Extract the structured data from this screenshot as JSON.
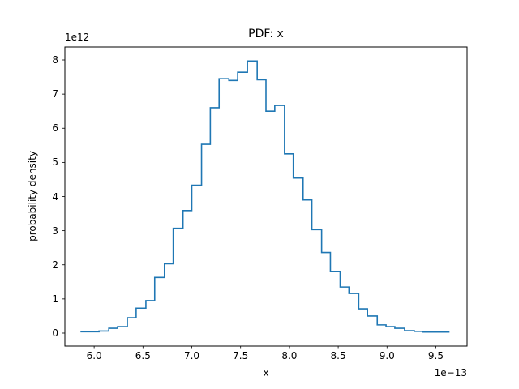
{
  "chart_data": {
    "type": "line",
    "subtype": "step-histogram",
    "title": "PDF: x",
    "xlabel": "x",
    "ylabel": "probability density",
    "x_offset_label": "1e−13",
    "y_offset_label": "1e12",
    "xlim": [
      5.7,
      9.82
    ],
    "ylim": [
      -0.38,
      8.38
    ],
    "x_ticks": [
      "6.0",
      "6.5",
      "7.0",
      "7.5",
      "8.0",
      "8.5",
      "9.0",
      "9.5"
    ],
    "x_tick_values": [
      6.0,
      6.5,
      7.0,
      7.5,
      8.0,
      8.5,
      9.0,
      9.5
    ],
    "y_ticks": [
      "0",
      "1",
      "2",
      "3",
      "4",
      "5",
      "6",
      "7",
      "8"
    ],
    "y_tick_values": [
      0,
      1,
      2,
      3,
      4,
      5,
      6,
      7,
      8
    ],
    "grid": false,
    "legend": null,
    "line_color": "#1f77b4",
    "bin_edges": [
      5.86,
      6.05,
      6.15,
      6.24,
      6.34,
      6.43,
      6.53,
      6.62,
      6.72,
      6.81,
      6.91,
      7.0,
      7.1,
      7.19,
      7.28,
      7.38,
      7.47,
      7.57,
      7.67,
      7.76,
      7.85,
      7.95,
      8.04,
      8.14,
      8.23,
      8.33,
      8.42,
      8.52,
      8.61,
      8.71,
      8.8,
      8.9,
      8.99,
      9.08,
      9.18,
      9.28,
      9.37,
      9.64
    ],
    "values": [
      0.04,
      0.06,
      0.14,
      0.19,
      0.45,
      0.73,
      0.95,
      1.63,
      2.03,
      3.07,
      3.59,
      4.33,
      5.53,
      6.6,
      7.45,
      7.4,
      7.64,
      7.97,
      7.42,
      6.5,
      6.67,
      5.25,
      4.54,
      3.9,
      3.03,
      2.36,
      1.8,
      1.35,
      1.16,
      0.71,
      0.5,
      0.24,
      0.19,
      0.14,
      0.07,
      0.05,
      0.03
    ]
  }
}
